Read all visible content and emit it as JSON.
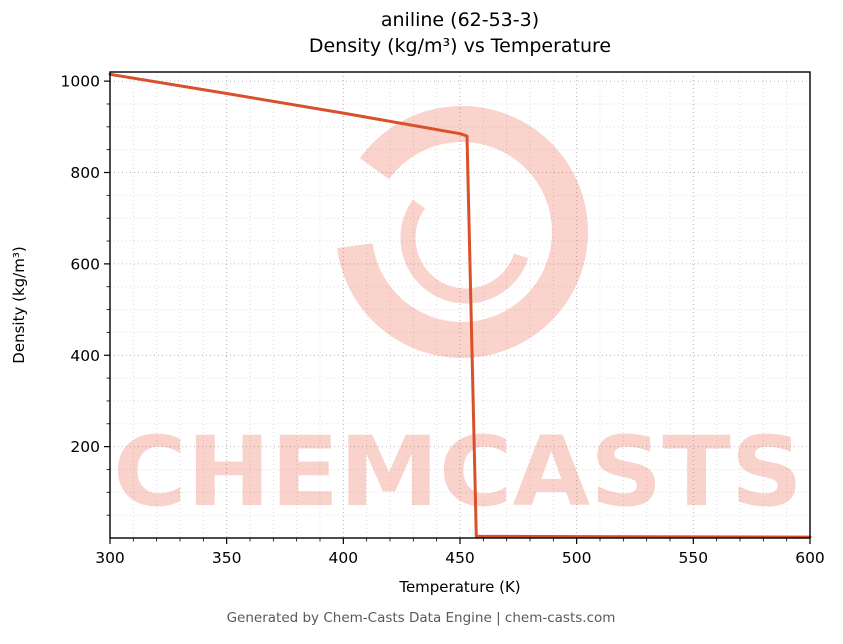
{
  "title_line1": "aniline (62-53-3)",
  "title_line2": "Density (kg/m³) vs Temperature",
  "footer": "Generated by Chem-Casts Data Engine | chem-casts.com",
  "watermark": {
    "text": "CHEMCASTS",
    "color": "#e4492a",
    "opacity": 0.24
  },
  "chart_data": {
    "type": "line",
    "title": "aniline (62-53-3) Density (kg/m³) vs Temperature",
    "xlabel": "Temperature (K)",
    "ylabel": "Density (kg/m³)",
    "xlim": [
      300,
      600
    ],
    "ylim": [
      0,
      1020
    ],
    "xticks": [
      300,
      350,
      400,
      450,
      500,
      550,
      600
    ],
    "yticks": [
      200,
      400,
      600,
      800,
      1000
    ],
    "grid": true,
    "legend": "none",
    "series": [
      {
        "name": "density",
        "color": "#d9512a",
        "points": [
          [
            300,
            1015
          ],
          [
            350,
            973
          ],
          [
            400,
            930
          ],
          [
            450,
            885
          ],
          [
            453,
            880
          ],
          [
            457,
            4
          ],
          [
            500,
            3
          ],
          [
            550,
            2.5
          ],
          [
            600,
            2
          ]
        ]
      }
    ]
  }
}
